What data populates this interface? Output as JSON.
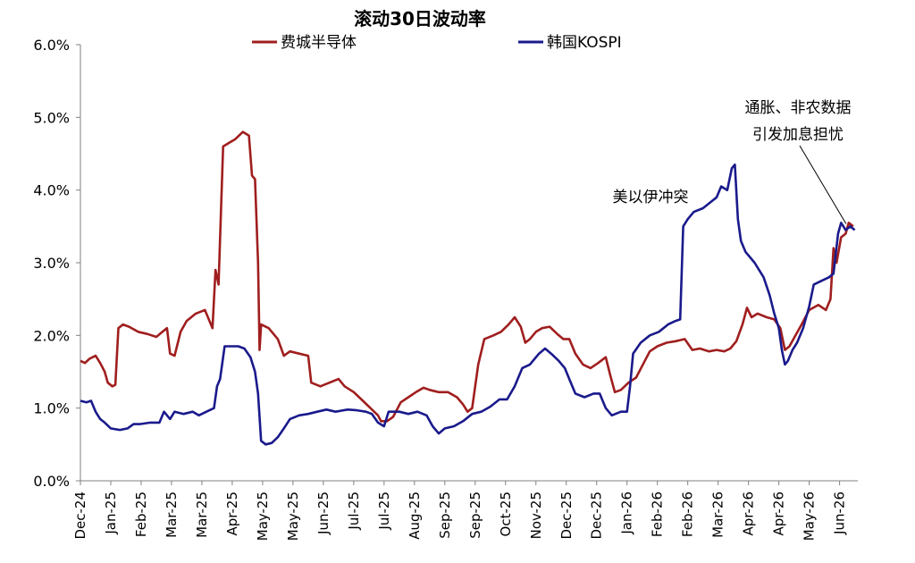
{
  "chart_data": {
    "type": "line",
    "title": "滚动30日波动率",
    "ylim": [
      0,
      6
    ],
    "y_ticks": [
      "0.0%",
      "1.0%",
      "2.0%",
      "3.0%",
      "4.0%",
      "5.0%",
      "6.0%"
    ],
    "x_ticks": [
      "Dec-24",
      "Jan-25",
      "Feb-25",
      "Mar-25",
      "Mar-25",
      "Apr-25",
      "May-25",
      "May-25",
      "Jun-25",
      "Jul-25",
      "Jul-25",
      "Aug-25",
      "Sep-25",
      "Sep-25",
      "Oct-25",
      "Nov-25",
      "Dec-25",
      "Dec-25",
      "Jan-26",
      "Feb-26",
      "Feb-26",
      "Mar-26",
      "Apr-26",
      "Apr-26",
      "May-26",
      "Jun-26"
    ],
    "x_range": [
      0,
      25.6
    ],
    "legend_placement": "top",
    "grid": false,
    "annotations": [
      {
        "id": "conflict",
        "lines": [
          "美以伊冲突"
        ],
        "x": 20.7,
        "y": 3.72
      },
      {
        "id": "inflation",
        "lines": [
          "通胀、非农数据",
          "引发加息担忧"
        ],
        "x": 25.3,
        "y": 3.5
      }
    ],
    "series": [
      {
        "name": "费城半导体",
        "color": "#A01E1E",
        "points": [
          [
            0,
            1.65
          ],
          [
            0.15,
            1.62
          ],
          [
            0.3,
            1.68
          ],
          [
            0.5,
            1.72
          ],
          [
            0.65,
            1.62
          ],
          [
            0.8,
            1.5
          ],
          [
            0.9,
            1.35
          ],
          [
            1.05,
            1.3
          ],
          [
            1.15,
            1.32
          ],
          [
            1.25,
            2.1
          ],
          [
            1.4,
            2.15
          ],
          [
            1.6,
            2.12
          ],
          [
            1.9,
            2.05
          ],
          [
            2.2,
            2.02
          ],
          [
            2.5,
            1.98
          ],
          [
            2.7,
            2.05
          ],
          [
            2.85,
            2.1
          ],
          [
            2.95,
            1.75
          ],
          [
            3.1,
            1.72
          ],
          [
            3.3,
            2.05
          ],
          [
            3.5,
            2.2
          ],
          [
            3.8,
            2.3
          ],
          [
            4.1,
            2.35
          ],
          [
            4.2,
            2.25
          ],
          [
            4.35,
            2.1
          ],
          [
            4.45,
            2.9
          ],
          [
            4.55,
            2.7
          ],
          [
            4.7,
            4.6
          ],
          [
            4.9,
            4.65
          ],
          [
            5.1,
            4.7
          ],
          [
            5.35,
            4.8
          ],
          [
            5.55,
            4.75
          ],
          [
            5.65,
            4.2
          ],
          [
            5.75,
            4.15
          ],
          [
            5.85,
            3.0
          ],
          [
            5.9,
            1.8
          ],
          [
            5.95,
            2.15
          ],
          [
            6.2,
            2.1
          ],
          [
            6.5,
            1.95
          ],
          [
            6.7,
            1.72
          ],
          [
            6.9,
            1.78
          ],
          [
            7.2,
            1.75
          ],
          [
            7.5,
            1.72
          ],
          [
            7.6,
            1.35
          ],
          [
            7.9,
            1.3
          ],
          [
            8.2,
            1.35
          ],
          [
            8.5,
            1.4
          ],
          [
            8.7,
            1.3
          ],
          [
            9.0,
            1.22
          ],
          [
            9.3,
            1.1
          ],
          [
            9.55,
            1.0
          ],
          [
            9.8,
            0.9
          ],
          [
            9.9,
            0.82
          ],
          [
            10.1,
            0.82
          ],
          [
            10.3,
            0.88
          ],
          [
            10.55,
            1.08
          ],
          [
            10.8,
            1.15
          ],
          [
            11.05,
            1.22
          ],
          [
            11.3,
            1.28
          ],
          [
            11.5,
            1.25
          ],
          [
            11.8,
            1.22
          ],
          [
            12.1,
            1.22
          ],
          [
            12.4,
            1.15
          ],
          [
            12.6,
            1.05
          ],
          [
            12.75,
            0.95
          ],
          [
            12.9,
            1.0
          ],
          [
            13.1,
            1.6
          ],
          [
            13.3,
            1.95
          ],
          [
            13.6,
            2.0
          ],
          [
            13.85,
            2.05
          ],
          [
            14.1,
            2.15
          ],
          [
            14.3,
            2.25
          ],
          [
            14.5,
            2.12
          ],
          [
            14.65,
            1.9
          ],
          [
            14.8,
            1.95
          ],
          [
            15.0,
            2.05
          ],
          [
            15.2,
            2.1
          ],
          [
            15.45,
            2.12
          ],
          [
            15.7,
            2.02
          ],
          [
            15.9,
            1.95
          ],
          [
            16.1,
            1.95
          ],
          [
            16.3,
            1.75
          ],
          [
            16.55,
            1.6
          ],
          [
            16.8,
            1.55
          ],
          [
            17.05,
            1.62
          ],
          [
            17.3,
            1.7
          ],
          [
            17.45,
            1.45
          ],
          [
            17.6,
            1.22
          ],
          [
            17.8,
            1.25
          ],
          [
            18.05,
            1.35
          ],
          [
            18.3,
            1.42
          ],
          [
            18.55,
            1.62
          ],
          [
            18.75,
            1.78
          ],
          [
            19.0,
            1.85
          ],
          [
            19.3,
            1.9
          ],
          [
            19.6,
            1.92
          ],
          [
            19.9,
            1.95
          ],
          [
            20.15,
            1.8
          ],
          [
            20.4,
            1.82
          ],
          [
            20.7,
            1.78
          ],
          [
            20.95,
            1.8
          ],
          [
            21.2,
            1.78
          ],
          [
            21.4,
            1.82
          ],
          [
            21.6,
            1.92
          ],
          [
            21.8,
            2.15
          ],
          [
            21.95,
            2.38
          ],
          [
            22.1,
            2.25
          ],
          [
            22.3,
            2.3
          ],
          [
            22.6,
            2.25
          ],
          [
            22.85,
            2.22
          ],
          [
            23.05,
            2.1
          ],
          [
            23.2,
            1.8
          ],
          [
            23.35,
            1.85
          ],
          [
            23.55,
            2.0
          ],
          [
            23.75,
            2.15
          ],
          [
            24.0,
            2.35
          ],
          [
            24.3,
            2.42
          ],
          [
            24.55,
            2.35
          ],
          [
            24.7,
            2.5
          ],
          [
            24.8,
            3.2
          ],
          [
            24.9,
            3.0
          ],
          [
            25.05,
            3.35
          ],
          [
            25.2,
            3.4
          ],
          [
            25.3,
            3.55
          ],
          [
            25.45,
            3.5
          ]
        ]
      },
      {
        "name": "韩国KOSPI",
        "color": "#1A1A8C",
        "points": [
          [
            0,
            1.1
          ],
          [
            0.2,
            1.08
          ],
          [
            0.35,
            1.1
          ],
          [
            0.5,
            0.95
          ],
          [
            0.65,
            0.85
          ],
          [
            0.8,
            0.8
          ],
          [
            1.0,
            0.72
          ],
          [
            1.3,
            0.7
          ],
          [
            1.55,
            0.72
          ],
          [
            1.75,
            0.78
          ],
          [
            1.95,
            0.78
          ],
          [
            2.3,
            0.8
          ],
          [
            2.6,
            0.8
          ],
          [
            2.75,
            0.95
          ],
          [
            2.95,
            0.85
          ],
          [
            3.1,
            0.95
          ],
          [
            3.4,
            0.92
          ],
          [
            3.7,
            0.95
          ],
          [
            3.9,
            0.9
          ],
          [
            4.15,
            0.95
          ],
          [
            4.4,
            1.0
          ],
          [
            4.5,
            1.3
          ],
          [
            4.6,
            1.4
          ],
          [
            4.75,
            1.85
          ],
          [
            4.95,
            1.85
          ],
          [
            5.2,
            1.85
          ],
          [
            5.4,
            1.82
          ],
          [
            5.6,
            1.7
          ],
          [
            5.75,
            1.5
          ],
          [
            5.85,
            1.2
          ],
          [
            5.95,
            0.55
          ],
          [
            6.1,
            0.5
          ],
          [
            6.3,
            0.52
          ],
          [
            6.5,
            0.6
          ],
          [
            6.7,
            0.72
          ],
          [
            6.9,
            0.85
          ],
          [
            7.2,
            0.9
          ],
          [
            7.5,
            0.92
          ],
          [
            7.8,
            0.95
          ],
          [
            8.1,
            0.98
          ],
          [
            8.4,
            0.95
          ],
          [
            8.8,
            0.98
          ],
          [
            9.1,
            0.97
          ],
          [
            9.4,
            0.95
          ],
          [
            9.6,
            0.92
          ],
          [
            9.8,
            0.8
          ],
          [
            10.0,
            0.75
          ],
          [
            10.15,
            0.95
          ],
          [
            10.5,
            0.95
          ],
          [
            10.8,
            0.92
          ],
          [
            11.1,
            0.95
          ],
          [
            11.4,
            0.9
          ],
          [
            11.6,
            0.75
          ],
          [
            11.8,
            0.65
          ],
          [
            12.0,
            0.72
          ],
          [
            12.3,
            0.75
          ],
          [
            12.6,
            0.82
          ],
          [
            12.9,
            0.92
          ],
          [
            13.2,
            0.95
          ],
          [
            13.5,
            1.02
          ],
          [
            13.8,
            1.12
          ],
          [
            14.05,
            1.12
          ],
          [
            14.3,
            1.3
          ],
          [
            14.55,
            1.55
          ],
          [
            14.8,
            1.6
          ],
          [
            15.1,
            1.75
          ],
          [
            15.3,
            1.82
          ],
          [
            15.5,
            1.75
          ],
          [
            15.75,
            1.65
          ],
          [
            15.95,
            1.55
          ],
          [
            16.1,
            1.4
          ],
          [
            16.3,
            1.2
          ],
          [
            16.6,
            1.15
          ],
          [
            16.9,
            1.2
          ],
          [
            17.1,
            1.2
          ],
          [
            17.3,
            1.0
          ],
          [
            17.5,
            0.9
          ],
          [
            17.8,
            0.95
          ],
          [
            18.0,
            0.95
          ],
          [
            18.1,
            1.3
          ],
          [
            18.2,
            1.75
          ],
          [
            18.45,
            1.9
          ],
          [
            18.75,
            2.0
          ],
          [
            19.05,
            2.05
          ],
          [
            19.35,
            2.15
          ],
          [
            19.6,
            2.2
          ],
          [
            19.75,
            2.22
          ],
          [
            19.85,
            3.5
          ],
          [
            20.0,
            3.6
          ],
          [
            20.2,
            3.7
          ],
          [
            20.5,
            3.75
          ],
          [
            20.8,
            3.85
          ],
          [
            20.95,
            3.9
          ],
          [
            21.1,
            4.05
          ],
          [
            21.3,
            4.0
          ],
          [
            21.45,
            4.3
          ],
          [
            21.55,
            4.35
          ],
          [
            21.65,
            3.6
          ],
          [
            21.75,
            3.3
          ],
          [
            21.9,
            3.15
          ],
          [
            22.2,
            3.0
          ],
          [
            22.5,
            2.8
          ],
          [
            22.7,
            2.55
          ],
          [
            22.85,
            2.3
          ],
          [
            23.0,
            2.1
          ],
          [
            23.1,
            1.8
          ],
          [
            23.2,
            1.6
          ],
          [
            23.3,
            1.65
          ],
          [
            23.45,
            1.8
          ],
          [
            23.6,
            1.9
          ],
          [
            23.8,
            2.1
          ],
          [
            24.0,
            2.4
          ],
          [
            24.15,
            2.7
          ],
          [
            24.4,
            2.75
          ],
          [
            24.65,
            2.8
          ],
          [
            24.8,
            2.85
          ],
          [
            24.95,
            3.4
          ],
          [
            25.05,
            3.55
          ],
          [
            25.2,
            3.45
          ],
          [
            25.35,
            3.5
          ],
          [
            25.5,
            3.45
          ]
        ]
      }
    ]
  }
}
